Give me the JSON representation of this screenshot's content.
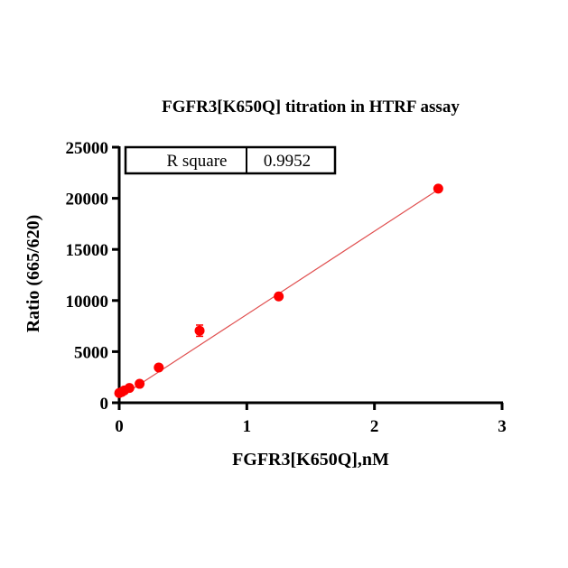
{
  "chart_data": {
    "type": "scatter",
    "title": "FGFR3[K650Q] titration in HTRF assay",
    "xlabel": "FGFR3[K650Q],nM",
    "ylabel": "Ratio (665/620)",
    "xlim": [
      0,
      3
    ],
    "ylim": [
      0,
      25000
    ],
    "x_ticks": [
      "0",
      "1",
      "2",
      "3"
    ],
    "y_ticks": [
      "0",
      "5000",
      "10000",
      "15000",
      "20000",
      "25000"
    ],
    "grid": false,
    "points": {
      "x": [
        0.0,
        0.02,
        0.04,
        0.08,
        0.16,
        0.31,
        0.63,
        1.25,
        2.5
      ],
      "y": [
        950,
        1050,
        1200,
        1450,
        1850,
        3450,
        7050,
        10400,
        20950
      ],
      "error": [
        0,
        0,
        0,
        0,
        0,
        150,
        550,
        0,
        0
      ],
      "color": "#ff0000"
    },
    "fit_line": {
      "type": "linear",
      "x": [
        0,
        2.5
      ],
      "y": [
        500,
        20850
      ],
      "color": "#e05050"
    },
    "stats": {
      "label": "R square",
      "value": "0.9952"
    }
  }
}
